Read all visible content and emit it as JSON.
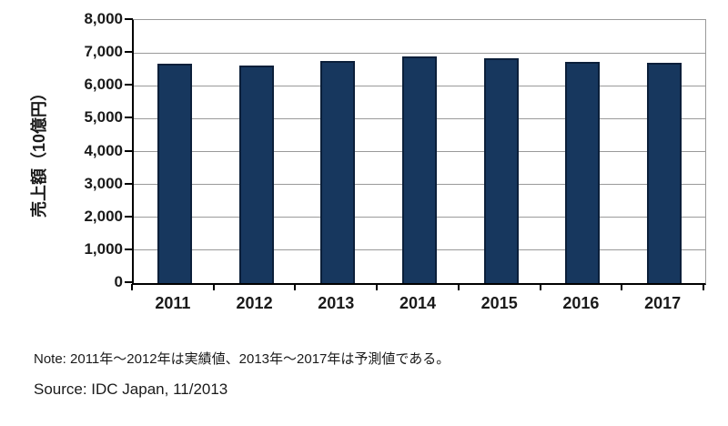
{
  "chart_data": {
    "type": "bar",
    "title": "",
    "xlabel": "",
    "ylabel": "売上額（10億円）",
    "categories": [
      "2011",
      "2012",
      "2013",
      "2014",
      "2015",
      "2016",
      "2017"
    ],
    "values": [
      6670,
      6610,
      6750,
      6880,
      6840,
      6730,
      6700
    ],
    "ylim": [
      0,
      8000
    ],
    "ytick_step": 1000,
    "ytick_labels": [
      "0",
      "1,000",
      "2,000",
      "3,000",
      "4,000",
      "5,000",
      "6,000",
      "7,000",
      "8,000"
    ],
    "grid": "horizontal-gridlines-on",
    "legend": "none",
    "bar_fill_color": "#17375E",
    "bar_border_color": "#0B1F3A",
    "gridline_color": "#9A9A9A",
    "axis_color": "#000000"
  },
  "footer": {
    "note": "Note: 2011年～2012年は実績値、2013年～2017年は予測値である。",
    "source": "Source: IDC Japan, 11/2013"
  }
}
